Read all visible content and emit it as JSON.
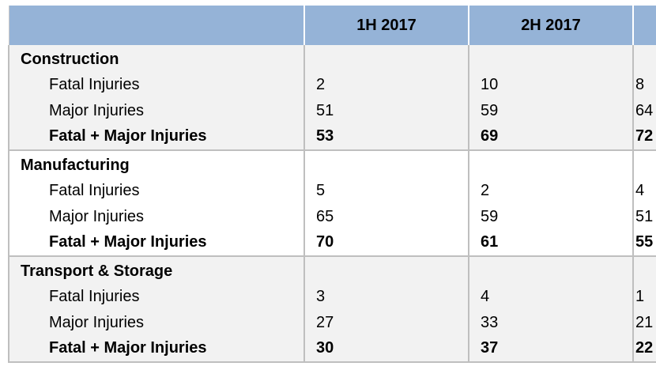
{
  "header": {
    "col0": "",
    "col1": "1H 2017",
    "col2": "2H 2017",
    "col3": ""
  },
  "groups": [
    {
      "name": "Construction",
      "rows": [
        {
          "label": "Fatal Injuries",
          "v1": "2",
          "v2": "10",
          "v3": "8"
        },
        {
          "label": "Major Injuries",
          "v1": "51",
          "v2": "59",
          "v3": "64"
        },
        {
          "label": "Fatal + Major Injuries",
          "v1": "53",
          "v2": "69",
          "v3": "72"
        }
      ]
    },
    {
      "name": "Manufacturing",
      "rows": [
        {
          "label": "Fatal Injuries",
          "v1": "5",
          "v2": "2",
          "v3": "4"
        },
        {
          "label": "Major Injuries",
          "v1": "65",
          "v2": "59",
          "v3": "51"
        },
        {
          "label": "Fatal + Major Injuries",
          "v1": "70",
          "v2": "61",
          "v3": "55"
        }
      ]
    },
    {
      "name": "Transport & Storage",
      "rows": [
        {
          "label": "Fatal Injuries",
          "v1": "3",
          "v2": "4",
          "v3": "1"
        },
        {
          "label": "Major Injuries",
          "v1": "27",
          "v2": "33",
          "v3": "21"
        },
        {
          "label": "Fatal + Major Injuries",
          "v1": "30",
          "v2": "37",
          "v3": "22"
        }
      ]
    }
  ]
}
